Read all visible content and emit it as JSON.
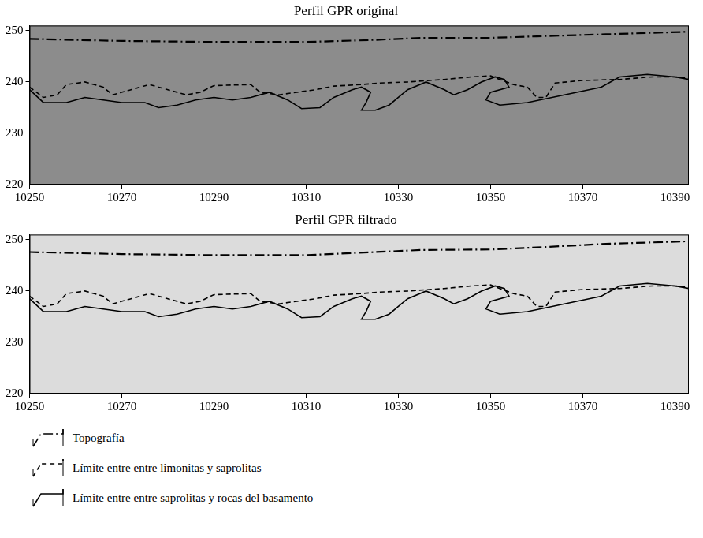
{
  "chart_data": [
    {
      "type": "line",
      "title": "Perfil GPR original",
      "xlim": [
        10250,
        10393
      ],
      "xticks": [
        10250,
        10270,
        10290,
        10310,
        10330,
        10350,
        10370,
        10390
      ],
      "ylim": [
        220,
        251
      ],
      "yticks": [
        220,
        230,
        240,
        250
      ],
      "grid": false,
      "series": [
        {
          "name": "Topografía",
          "color": "#000000",
          "line_style": "dashdot",
          "x": [
            10250,
            10270,
            10290,
            10310,
            10325,
            10335,
            10350,
            10360,
            10375,
            10393
          ],
          "values": [
            248.4,
            248.0,
            247.8,
            247.8,
            248.2,
            248.6,
            248.6,
            248.9,
            249.3,
            249.8
          ]
        },
        {
          "name": "Límite entre entre limonitas y saprolitas",
          "color": "#000000",
          "line_style": "dashed",
          "x": [
            10250,
            10253,
            10256,
            10258,
            10262,
            10266,
            10268,
            10272,
            10276,
            10280,
            10284,
            10287,
            10290,
            10298,
            10300,
            10304,
            10308,
            10312,
            10316,
            10322,
            10326,
            10332,
            10340,
            10346,
            10350,
            10352,
            10355,
            10358,
            10360,
            10362,
            10364,
            10370,
            10378,
            10385,
            10390,
            10393
          ],
          "values": [
            239,
            237,
            237.5,
            239.5,
            240,
            239,
            237.5,
            238.5,
            239.5,
            238.5,
            237.5,
            238,
            239.3,
            239.5,
            238,
            237.5,
            238,
            238.5,
            239.2,
            239.5,
            239.8,
            240,
            240.5,
            241,
            241.2,
            240.5,
            239.5,
            239,
            237,
            237,
            239.8,
            240.3,
            240.5,
            241,
            241,
            240.8
          ]
        },
        {
          "name": "Límite entre entre saprolitas y rocas del basamento",
          "color": "#000000",
          "line_style": "solid",
          "x": [
            10250,
            10253,
            10258,
            10262,
            10266,
            10270,
            10275,
            10278,
            10282,
            10286,
            10290,
            10294,
            10298,
            10302,
            10306,
            10309,
            10313,
            10316,
            10320,
            10322,
            10324,
            10323,
            10322,
            10325,
            10328,
            10330,
            10332,
            10336,
            10340,
            10342,
            10345,
            10348,
            10351,
            10353,
            10354,
            10350,
            10349,
            10352,
            10358,
            10366,
            10374,
            10378,
            10384,
            10390,
            10393
          ],
          "values": [
            238.5,
            236,
            236,
            237,
            236.5,
            236,
            236,
            235,
            235.5,
            236.5,
            237,
            236.5,
            237,
            238,
            236.5,
            234.8,
            235,
            237,
            238.5,
            239,
            238,
            236,
            234.5,
            234.5,
            235.5,
            237,
            238.5,
            240,
            238.5,
            237.5,
            238.5,
            240,
            241,
            240.5,
            239,
            238,
            236.5,
            235.5,
            236,
            237.5,
            239,
            241,
            241.5,
            241,
            240.5
          ]
        }
      ]
    },
    {
      "type": "line",
      "title": "Perfil GPR filtrado",
      "xlim": [
        10250,
        10393
      ],
      "xticks": [
        10250,
        10270,
        10290,
        10310,
        10330,
        10350,
        10370,
        10390
      ],
      "ylim": [
        220,
        251
      ],
      "yticks": [
        220,
        230,
        240,
        250
      ],
      "grid": false,
      "legend": "bottom",
      "series": [
        {
          "name": "Topografía",
          "color": "#000000",
          "line_style": "dashdot",
          "x": [
            10250,
            10270,
            10290,
            10310,
            10325,
            10335,
            10350,
            10360,
            10375,
            10393
          ],
          "values": [
            247.6,
            247.2,
            247.0,
            247.0,
            247.6,
            248.0,
            248.1,
            248.5,
            249.2,
            249.7
          ]
        },
        {
          "name": "Límite entre entre limonitas y saprolitas",
          "color": "#000000",
          "line_style": "dashed",
          "x": [
            10250,
            10253,
            10256,
            10258,
            10262,
            10266,
            10268,
            10272,
            10276,
            10280,
            10284,
            10287,
            10290,
            10298,
            10300,
            10304,
            10308,
            10312,
            10316,
            10322,
            10326,
            10332,
            10340,
            10346,
            10350,
            10352,
            10355,
            10358,
            10360,
            10362,
            10364,
            10370,
            10378,
            10385,
            10390,
            10393
          ],
          "values": [
            239,
            237,
            237.5,
            239.5,
            240,
            239,
            237.5,
            238.5,
            239.5,
            238.5,
            237.5,
            238,
            239.3,
            239.5,
            238,
            237.5,
            238,
            238.5,
            239.2,
            239.5,
            239.8,
            240,
            240.5,
            241,
            241.2,
            240.5,
            239.5,
            239,
            237,
            237,
            239.8,
            240.3,
            240.5,
            241,
            241,
            240.8
          ]
        },
        {
          "name": "Límite entre entre saprolitas y rocas del basamento",
          "color": "#000000",
          "line_style": "solid",
          "x": [
            10250,
            10253,
            10258,
            10262,
            10266,
            10270,
            10275,
            10278,
            10282,
            10286,
            10290,
            10294,
            10298,
            10302,
            10306,
            10309,
            10313,
            10316,
            10320,
            10322,
            10324,
            10323,
            10322,
            10325,
            10328,
            10330,
            10332,
            10336,
            10340,
            10342,
            10345,
            10348,
            10351,
            10353,
            10354,
            10350,
            10349,
            10352,
            10358,
            10366,
            10374,
            10378,
            10384,
            10390,
            10393
          ],
          "values": [
            238.5,
            236,
            236,
            237,
            236.5,
            236,
            236,
            235,
            235.5,
            236.5,
            237,
            236.5,
            237,
            238,
            236.5,
            234.8,
            235,
            237,
            238.5,
            239,
            238,
            236,
            234.5,
            234.5,
            235.5,
            237,
            238.5,
            240,
            238.5,
            237.5,
            238.5,
            240,
            241,
            240.5,
            239,
            238,
            236.5,
            235.5,
            236,
            237.5,
            239,
            241,
            241.5,
            241,
            240.5
          ]
        }
      ]
    }
  ]
}
